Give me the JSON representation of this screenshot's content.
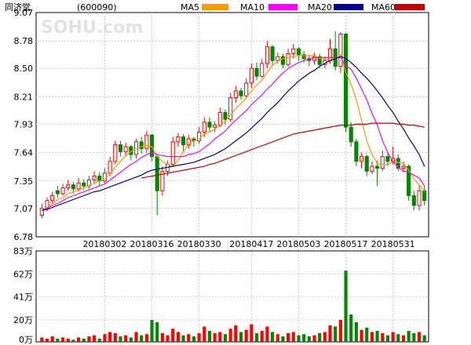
{
  "header": {
    "stock_name": "同济堂",
    "stock_code": "(600090)",
    "watermark": "SOHU.com"
  },
  "legend": [
    {
      "label": "MA5",
      "color": "#ff9900"
    },
    {
      "label": "MA10",
      "color": "#ff00ff"
    },
    {
      "label": "MA20",
      "color": "#000099"
    },
    {
      "label": "MA60",
      "color": "#cc0000"
    }
  ],
  "colors": {
    "up": "#ff0000",
    "down": "#008800",
    "grid": "#c8c8c8",
    "axis": "#000000"
  },
  "chart_data": [
    {
      "type": "candlestick",
      "y_ticks": [
        "9.07",
        "8.78",
        "8.50",
        "8.21",
        "7.93",
        "7.64",
        "7.35",
        "7.07",
        "6.78"
      ],
      "ylim": [
        6.78,
        9.07
      ],
      "x_ticks": [
        {
          "label": "20180302",
          "index": 12
        },
        {
          "label": "20180316",
          "index": 21
        },
        {
          "label": "20180330",
          "index": 30
        },
        {
          "label": "20180417",
          "index": 40
        },
        {
          "label": "20180503",
          "index": 49
        },
        {
          "label": "20180517",
          "index": 58
        },
        {
          "label": "20180531",
          "index": 67
        }
      ],
      "candles": [
        [
          7.0,
          7.07,
          7.12,
          6.97
        ],
        [
          7.07,
          7.15,
          7.18,
          7.04
        ],
        [
          7.15,
          7.2,
          7.24,
          7.12
        ],
        [
          7.25,
          7.22,
          7.3,
          7.18
        ],
        [
          7.22,
          7.28,
          7.32,
          7.2
        ],
        [
          7.28,
          7.31,
          7.36,
          7.25
        ],
        [
          7.31,
          7.27,
          7.34,
          7.22
        ],
        [
          7.27,
          7.33,
          7.38,
          7.24
        ],
        [
          7.33,
          7.3,
          7.37,
          7.26
        ],
        [
          7.3,
          7.36,
          7.4,
          7.27
        ],
        [
          7.36,
          7.4,
          7.45,
          7.32
        ],
        [
          7.4,
          7.35,
          7.44,
          7.3
        ],
        [
          7.35,
          7.43,
          7.48,
          7.33
        ],
        [
          7.43,
          7.55,
          7.6,
          7.4
        ],
        [
          7.55,
          7.72,
          7.76,
          7.52
        ],
        [
          7.72,
          7.65,
          7.76,
          7.6
        ],
        [
          7.65,
          7.7,
          7.74,
          7.6
        ],
        [
          7.7,
          7.62,
          7.72,
          7.56
        ],
        [
          7.62,
          7.75,
          7.78,
          7.58
        ],
        [
          7.75,
          7.68,
          7.8,
          7.63
        ],
        [
          7.68,
          7.82,
          7.86,
          7.64
        ],
        [
          7.82,
          7.6,
          7.83,
          7.55
        ],
        [
          7.6,
          7.25,
          7.62,
          7.0
        ],
        [
          7.25,
          7.45,
          7.5,
          7.2
        ],
        [
          7.45,
          7.52,
          7.56,
          7.4
        ],
        [
          7.52,
          7.75,
          7.8,
          7.5
        ],
        [
          7.75,
          7.8,
          7.84,
          7.7
        ],
        [
          7.8,
          7.72,
          7.83,
          7.65
        ],
        [
          7.72,
          7.78,
          7.82,
          7.68
        ],
        [
          7.78,
          7.76,
          7.8,
          7.7
        ],
        [
          7.76,
          7.85,
          7.9,
          7.73
        ],
        [
          7.85,
          7.95,
          8.0,
          7.8
        ],
        [
          7.95,
          7.9,
          8.0,
          7.84
        ],
        [
          7.9,
          7.92,
          7.96,
          7.85
        ],
        [
          7.92,
          8.05,
          8.1,
          7.9
        ],
        [
          8.05,
          7.98,
          8.08,
          7.92
        ],
        [
          7.98,
          8.2,
          8.25,
          7.95
        ],
        [
          8.2,
          8.27,
          8.32,
          8.15
        ],
        [
          8.27,
          8.22,
          8.3,
          8.18
        ],
        [
          8.22,
          8.35,
          8.4,
          8.2
        ],
        [
          8.35,
          8.5,
          8.55,
          8.3
        ],
        [
          8.5,
          8.42,
          8.56,
          8.38
        ],
        [
          8.42,
          8.55,
          8.6,
          8.4
        ],
        [
          8.55,
          8.72,
          8.78,
          8.5
        ],
        [
          8.72,
          8.58,
          8.74,
          8.52
        ],
        [
          8.58,
          8.62,
          8.66,
          8.55
        ],
        [
          8.62,
          8.54,
          8.65,
          8.5
        ],
        [
          8.54,
          8.65,
          8.7,
          8.52
        ],
        [
          8.65,
          8.7,
          8.75,
          8.6
        ],
        [
          8.7,
          8.64,
          8.72,
          8.58
        ],
        [
          8.64,
          8.6,
          8.68,
          8.56
        ],
        [
          8.6,
          8.58,
          8.64,
          8.52
        ],
        [
          8.58,
          8.62,
          8.66,
          8.54
        ],
        [
          8.62,
          8.54,
          8.65,
          8.5
        ],
        [
          8.54,
          8.58,
          8.62,
          8.5
        ],
        [
          8.58,
          8.7,
          8.8,
          8.55
        ],
        [
          8.7,
          8.52,
          8.88,
          8.48
        ],
        [
          8.52,
          8.85,
          8.87,
          8.45
        ],
        [
          8.85,
          7.9,
          8.86,
          7.85
        ],
        [
          7.9,
          7.75,
          7.95,
          7.7
        ],
        [
          7.75,
          7.55,
          7.78,
          7.5
        ],
        [
          7.55,
          7.6,
          7.64,
          7.48
        ],
        [
          7.6,
          7.45,
          7.62,
          7.4
        ],
        [
          7.45,
          7.5,
          7.55,
          7.42
        ],
        [
          7.5,
          7.48,
          7.56,
          7.3
        ],
        [
          7.48,
          7.6,
          7.66,
          7.45
        ],
        [
          7.6,
          7.55,
          7.64,
          7.5
        ],
        [
          7.55,
          7.58,
          7.7,
          7.52
        ],
        [
          7.58,
          7.48,
          7.62,
          7.45
        ],
        [
          7.48,
          7.5,
          7.55,
          7.44
        ],
        [
          7.5,
          7.2,
          7.52,
          7.15
        ],
        [
          7.2,
          7.1,
          7.25,
          7.05
        ],
        [
          7.1,
          7.25,
          7.3,
          7.05
        ],
        [
          7.25,
          7.15,
          7.3,
          7.1
        ]
      ],
      "ma_lines": {
        "MA5": [
          7.05,
          7.08,
          7.12,
          7.16,
          7.18,
          7.22,
          7.24,
          7.26,
          7.28,
          7.3,
          7.33,
          7.35,
          7.37,
          7.42,
          7.49,
          7.55,
          7.61,
          7.65,
          7.68,
          7.7,
          7.71,
          7.7,
          7.6,
          7.55,
          7.52,
          7.5,
          7.56,
          7.65,
          7.73,
          7.76,
          7.78,
          7.83,
          7.85,
          7.88,
          7.92,
          7.96,
          8.02,
          8.09,
          8.14,
          8.2,
          8.27,
          8.33,
          8.38,
          8.46,
          8.53,
          8.57,
          8.6,
          8.61,
          8.62,
          8.63,
          8.63,
          8.63,
          8.63,
          8.6,
          8.59,
          8.6,
          8.6,
          8.64,
          8.46,
          8.34,
          8.18,
          7.97,
          7.76,
          7.62,
          7.53,
          7.52,
          7.52,
          7.54,
          7.54,
          7.53,
          7.46,
          7.37,
          7.31,
          7.24
        ],
        "MA10": [
          7.05,
          7.07,
          7.1,
          7.12,
          7.15,
          7.18,
          7.2,
          7.22,
          7.24,
          7.26,
          7.28,
          7.3,
          7.32,
          7.36,
          7.4,
          7.44,
          7.48,
          7.52,
          7.55,
          7.59,
          7.62,
          7.64,
          7.62,
          7.61,
          7.6,
          7.6,
          7.6,
          7.6,
          7.62,
          7.63,
          7.65,
          7.69,
          7.73,
          7.78,
          7.82,
          7.86,
          7.92,
          7.97,
          8.02,
          8.07,
          8.13,
          8.18,
          8.23,
          8.29,
          8.34,
          8.4,
          8.45,
          8.5,
          8.53,
          8.56,
          8.58,
          8.6,
          8.61,
          8.61,
          8.61,
          8.61,
          8.61,
          8.61,
          8.53,
          8.49,
          8.4,
          8.29,
          8.18,
          8.04,
          7.92,
          7.76,
          7.64,
          7.55,
          7.49,
          7.45,
          7.44,
          7.41,
          7.38,
          7.3
        ],
        "MA20": [
          7.05,
          7.06,
          7.08,
          7.1,
          7.12,
          7.14,
          7.16,
          7.18,
          7.2,
          7.22,
          7.24,
          7.25,
          7.27,
          7.29,
          7.31,
          7.33,
          7.35,
          7.37,
          7.39,
          7.41,
          7.44,
          7.46,
          7.47,
          7.48,
          7.49,
          7.5,
          7.51,
          7.52,
          7.53,
          7.54,
          7.56,
          7.58,
          7.6,
          7.62,
          7.65,
          7.68,
          7.72,
          7.76,
          7.8,
          7.84,
          7.89,
          7.94,
          7.99,
          8.05,
          8.1,
          8.15,
          8.21,
          8.27,
          8.32,
          8.37,
          8.41,
          8.45,
          8.48,
          8.52,
          8.55,
          8.58,
          8.6,
          8.62,
          8.6,
          8.56,
          8.51,
          8.45,
          8.4,
          8.34,
          8.27,
          8.2,
          8.12,
          8.05,
          7.96,
          7.88,
          7.79,
          7.71,
          7.62,
          7.5
        ],
        "MA60": [
          null,
          null,
          null,
          null,
          null,
          null,
          null,
          null,
          null,
          null,
          null,
          null,
          null,
          null,
          null,
          null,
          null,
          null,
          null,
          7.38,
          7.39,
          7.4,
          7.41,
          7.42,
          7.43,
          7.44,
          7.45,
          7.46,
          7.47,
          7.48,
          7.49,
          7.5,
          7.52,
          7.53,
          7.55,
          7.57,
          7.59,
          7.61,
          7.63,
          7.65,
          7.67,
          7.69,
          7.71,
          7.73,
          7.75,
          7.77,
          7.79,
          7.81,
          7.83,
          7.84,
          7.85,
          7.86,
          7.87,
          7.88,
          7.89,
          7.9,
          7.91,
          7.92,
          7.92,
          7.92,
          7.93,
          7.93,
          7.93,
          7.94,
          7.94,
          7.94,
          7.94,
          7.94,
          7.93,
          7.93,
          7.92,
          7.92,
          7.91,
          7.9
        ]
      }
    },
    {
      "type": "bar",
      "y_ticks": [
        "83万",
        "62万",
        "41万",
        "20万",
        "0万"
      ],
      "ylim": [
        0,
        83
      ],
      "unit": "万",
      "volumes": [
        [
          4,
          1
        ],
        [
          3,
          1
        ],
        [
          5,
          1
        ],
        [
          3,
          0
        ],
        [
          4,
          1
        ],
        [
          3,
          1
        ],
        [
          2,
          0
        ],
        [
          4,
          1
        ],
        [
          3,
          0
        ],
        [
          5,
          1
        ],
        [
          6,
          1
        ],
        [
          3,
          0
        ],
        [
          7,
          1
        ],
        [
          9,
          1
        ],
        [
          8,
          1
        ],
        [
          5,
          0
        ],
        [
          6,
          1
        ],
        [
          4,
          0
        ],
        [
          9,
          1
        ],
        [
          6,
          0
        ],
        [
          7,
          1
        ],
        [
          20,
          0
        ],
        [
          18,
          0
        ],
        [
          8,
          1
        ],
        [
          6,
          1
        ],
        [
          12,
          1
        ],
        [
          9,
          1
        ],
        [
          6,
          0
        ],
        [
          7,
          1
        ],
        [
          5,
          0
        ],
        [
          8,
          1
        ],
        [
          14,
          1
        ],
        [
          10,
          0
        ],
        [
          8,
          1
        ],
        [
          9,
          1
        ],
        [
          7,
          0
        ],
        [
          12,
          1
        ],
        [
          15,
          1
        ],
        [
          9,
          0
        ],
        [
          11,
          1
        ],
        [
          16,
          1
        ],
        [
          8,
          0
        ],
        [
          10,
          1
        ],
        [
          14,
          1
        ],
        [
          9,
          0
        ],
        [
          7,
          1
        ],
        [
          5,
          0
        ],
        [
          8,
          1
        ],
        [
          9,
          1
        ],
        [
          6,
          0
        ],
        [
          7,
          0
        ],
        [
          5,
          0
        ],
        [
          6,
          1
        ],
        [
          8,
          0
        ],
        [
          9,
          1
        ],
        [
          15,
          1
        ],
        [
          14,
          0
        ],
        [
          20,
          1
        ],
        [
          65,
          0
        ],
        [
          25,
          0
        ],
        [
          18,
          0
        ],
        [
          11,
          1
        ],
        [
          13,
          0
        ],
        [
          9,
          1
        ],
        [
          10,
          0
        ],
        [
          8,
          1
        ],
        [
          6,
          0
        ],
        [
          9,
          1
        ],
        [
          7,
          0
        ],
        [
          6,
          1
        ],
        [
          10,
          0
        ],
        [
          8,
          0
        ],
        [
          9,
          1
        ],
        [
          6,
          0
        ]
      ]
    }
  ]
}
